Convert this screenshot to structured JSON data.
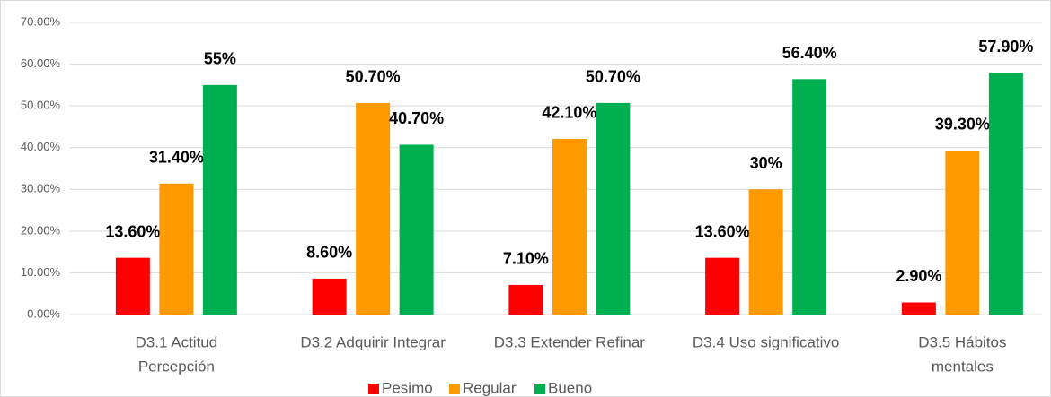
{
  "chart_data": {
    "type": "bar",
    "categories": [
      [
        "D3.1 Actitud",
        "Percepción"
      ],
      [
        "D3.2 Adquirir Integrar"
      ],
      [
        "D3.3 Extender Refinar"
      ],
      [
        "D3.4 Uso significativo"
      ],
      [
        "D3.5 Hábitos",
        "mentales"
      ]
    ],
    "series": [
      {
        "name": "Pesimo",
        "color": "#ff0000",
        "values": [
          13.6,
          8.6,
          7.1,
          13.6,
          2.9
        ],
        "value_labels": [
          "13.60%",
          "8.60%",
          "7.10%",
          "13.60%",
          "2.90%"
        ]
      },
      {
        "name": "Regular",
        "color": "#ff9900",
        "values": [
          31.4,
          50.7,
          42.1,
          30,
          39.3
        ],
        "value_labels": [
          "31.40%",
          "50.70%",
          "42.10%",
          "30%",
          "39.30%"
        ]
      },
      {
        "name": "Bueno",
        "color": "#00b050",
        "values": [
          55,
          40.7,
          50.7,
          56.4,
          57.9
        ],
        "value_labels": [
          "55%",
          "40.70%",
          "50.70%",
          "56.40%",
          "57.90%"
        ]
      }
    ],
    "ylim": [
      0,
      70
    ],
    "yticks": [
      {
        "value": 0,
        "label": "0.00%"
      },
      {
        "value": 10,
        "label": "10.00%"
      },
      {
        "value": 20,
        "label": "20.00%"
      },
      {
        "value": 30,
        "label": "30.00%"
      },
      {
        "value": 40,
        "label": "40.00%"
      },
      {
        "value": 50,
        "label": "50.00%"
      },
      {
        "value": 60,
        "label": "60.00%"
      },
      {
        "value": 70,
        "label": "70.00%"
      }
    ],
    "grid": true,
    "legend": "bottom"
  }
}
